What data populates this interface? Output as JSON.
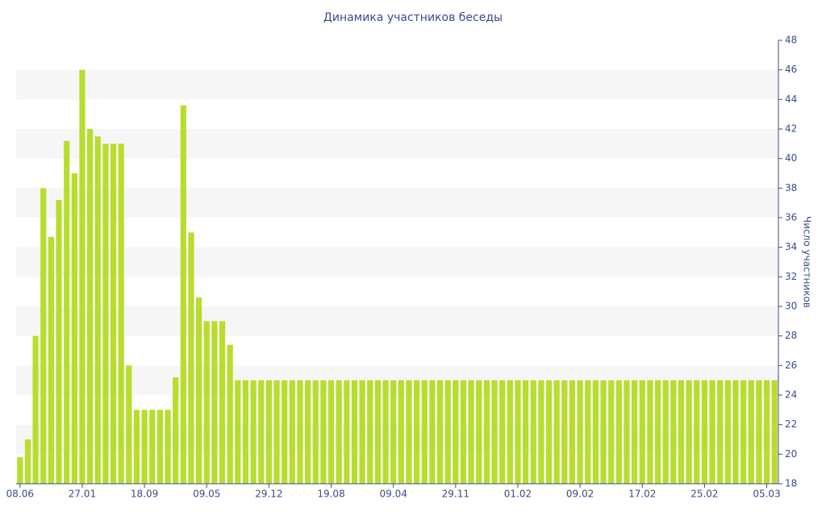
{
  "chart_data": {
    "type": "bar",
    "title": "Динамика участников беседы",
    "y_label": "Число участников",
    "color": "#b8dd2e",
    "categories": [
      "08.06",
      null,
      null,
      null,
      null,
      null,
      null,
      null,
      "27.01",
      null,
      null,
      null,
      null,
      null,
      null,
      null,
      "18.09",
      null,
      null,
      null,
      null,
      null,
      null,
      null,
      "09.05",
      null,
      null,
      null,
      null,
      null,
      null,
      null,
      "29.12",
      null,
      null,
      null,
      null,
      null,
      null,
      null,
      "19.08",
      null,
      null,
      null,
      null,
      null,
      null,
      null,
      "09.04",
      null,
      null,
      null,
      null,
      null,
      null,
      null,
      "29.11",
      null,
      null,
      null,
      null,
      null,
      null,
      null,
      "01.02",
      null,
      null,
      null,
      null,
      null,
      null,
      null,
      "09.02",
      null,
      null,
      null,
      null,
      null,
      null,
      null,
      "17.02",
      null,
      null,
      null,
      null,
      null,
      null,
      null,
      "25.02",
      null,
      null,
      null,
      null,
      null,
      null,
      null,
      "05.03",
      null
    ],
    "values": [
      19.8,
      21,
      28,
      38,
      34.7,
      37.2,
      41.2,
      39,
      46,
      42,
      41.5,
      41,
      41,
      41,
      26,
      23,
      23,
      23,
      23,
      23,
      25.2,
      43.6,
      35,
      30.6,
      29,
      29,
      29,
      27.4,
      25,
      25,
      25,
      25,
      25,
      25,
      25,
      25,
      25,
      25,
      25,
      25,
      25,
      25,
      25,
      25,
      25,
      25,
      25,
      25,
      25,
      25,
      25,
      25,
      25,
      25,
      25,
      25,
      25,
      25,
      25,
      25,
      25,
      25,
      25,
      25,
      25,
      25,
      25,
      25,
      25,
      25,
      25,
      25,
      25,
      25,
      25,
      25,
      25,
      25,
      25,
      25,
      25,
      25,
      25,
      25,
      25,
      25,
      25,
      25,
      25,
      25,
      25,
      25,
      25,
      25,
      25,
      25,
      25,
      25
    ],
    "ylim": [
      18,
      48
    ],
    "yticks": [
      18,
      20,
      22,
      24,
      26,
      28,
      30,
      32,
      34,
      36,
      38,
      40,
      42,
      44,
      46,
      48
    ],
    "grid": true
  }
}
